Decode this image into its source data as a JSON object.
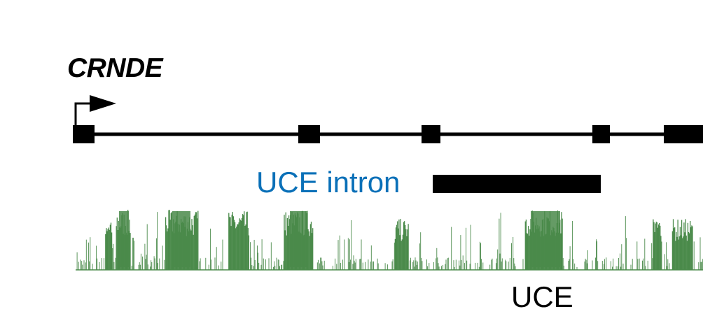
{
  "gene": {
    "name": "CRNDE",
    "exon_count": 5
  },
  "labels": {
    "uce_intron": "UCE intron",
    "uce": "UCE"
  },
  "colors": {
    "gene_model": "#000000",
    "uce_intron": "#0a70b8",
    "uce": "#000000",
    "conservation": "#4a8a4a"
  },
  "icons": {
    "tss": "tss-arrow-icon"
  }
}
